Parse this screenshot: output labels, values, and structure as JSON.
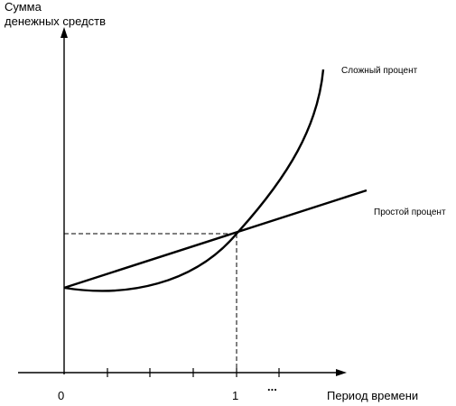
{
  "chart_data": {
    "type": "line",
    "ylabel": [
      "Сумма",
      "денежных средств"
    ],
    "xlabel": "Период времени",
    "x_ticks": [
      "0",
      "1",
      "..."
    ],
    "series": [
      {
        "name": "Простой процент",
        "kind": "simple_interest"
      },
      {
        "name": "Сложный процент",
        "kind": "compound_interest"
      }
    ],
    "intersection": {
      "x": 1
    },
    "grid": false
  }
}
